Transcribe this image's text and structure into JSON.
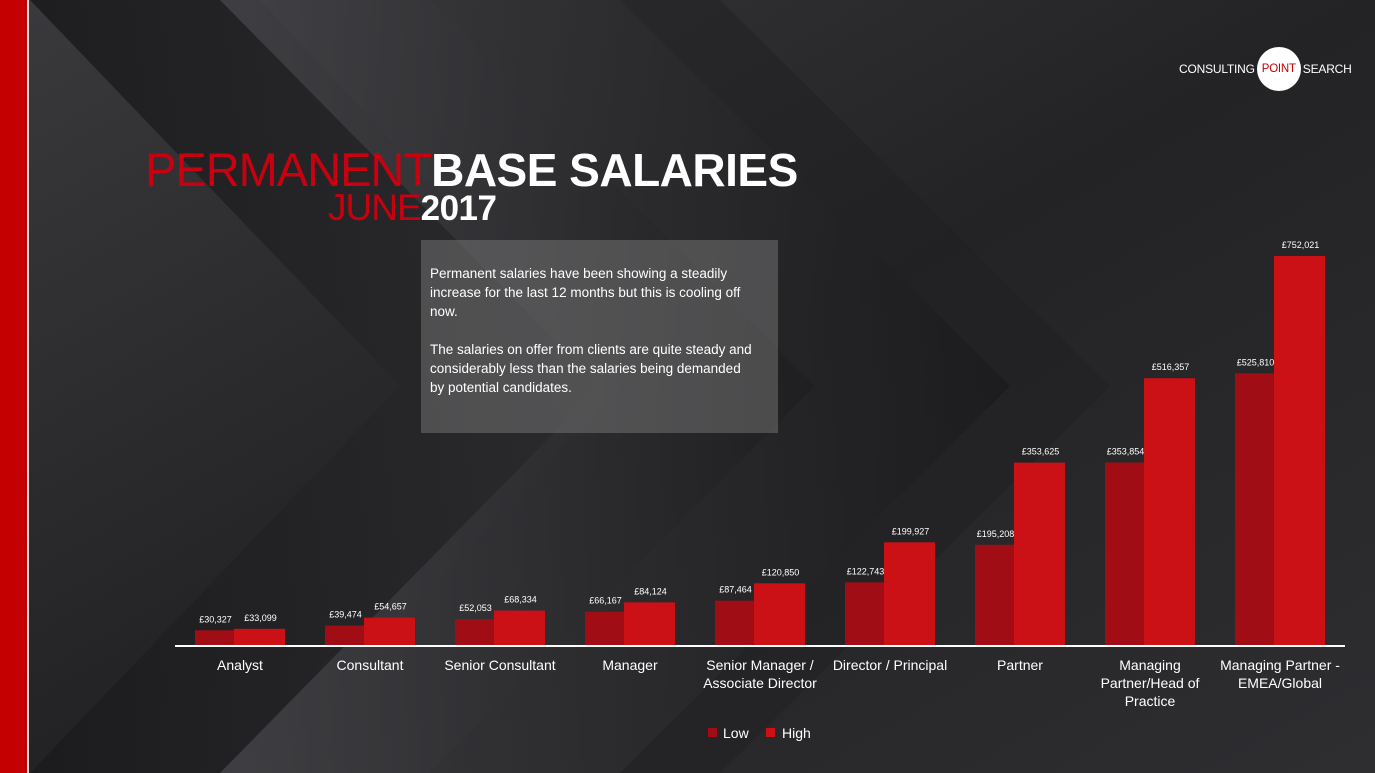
{
  "header": {
    "title_red_1": "PERMANENT",
    "title_white_1": "BASE SALARIES",
    "title_red_2": "JUNE",
    "title_white_2": "2017"
  },
  "logo": {
    "left": "CONSULTING",
    "middle": "POINT",
    "right": "SEARCH"
  },
  "textbox": {
    "paragraph_1": "Permanent salaries have been showing a steadily increase for the last 12 months but this is cooling off now.",
    "paragraph_2": "The salaries on offer from clients are quite steady and considerably less than the salaries being demanded by potential candidates."
  },
  "colors": {
    "accent_red": "#c40000",
    "low_bar": "#a00d14",
    "high_bar": "#cc1116",
    "background": "#2a2a2c"
  },
  "chart_data": {
    "type": "bar",
    "categories": [
      [
        "Analyst"
      ],
      [
        "Consultant"
      ],
      [
        "Senior Consultant"
      ],
      [
        "Manager"
      ],
      [
        "Senior Manager /",
        "Associate Director"
      ],
      [
        "Director / Principal"
      ],
      [
        "Partner"
      ],
      [
        "Managing",
        "Partner/Head of",
        "Practice"
      ],
      [
        "Managing Partner -",
        "EMEA/Global"
      ]
    ],
    "series": [
      {
        "name": "Low",
        "values": [
          30327,
          39474,
          52053,
          66167,
          87464,
          122743,
          195208,
          353854,
          525810
        ],
        "labels": [
          "£30,327",
          "£39,474",
          "£52,053",
          "£66,167",
          "£87,464",
          "£122,743",
          "£195,208",
          "£353,854",
          "£525,810"
        ]
      },
      {
        "name": "High",
        "values": [
          33099,
          54657,
          68334,
          84124,
          120850,
          199927,
          353625,
          516357,
          752021
        ],
        "labels": [
          "£33,099",
          "£54,657",
          "£68,334",
          "£84,124",
          "£120,850",
          "£199,927",
          "£353,625",
          "£516,357",
          "£752,021"
        ]
      }
    ],
    "ylim": [
      0,
      752021
    ],
    "legend_position": "bottom-center",
    "grid": false
  }
}
